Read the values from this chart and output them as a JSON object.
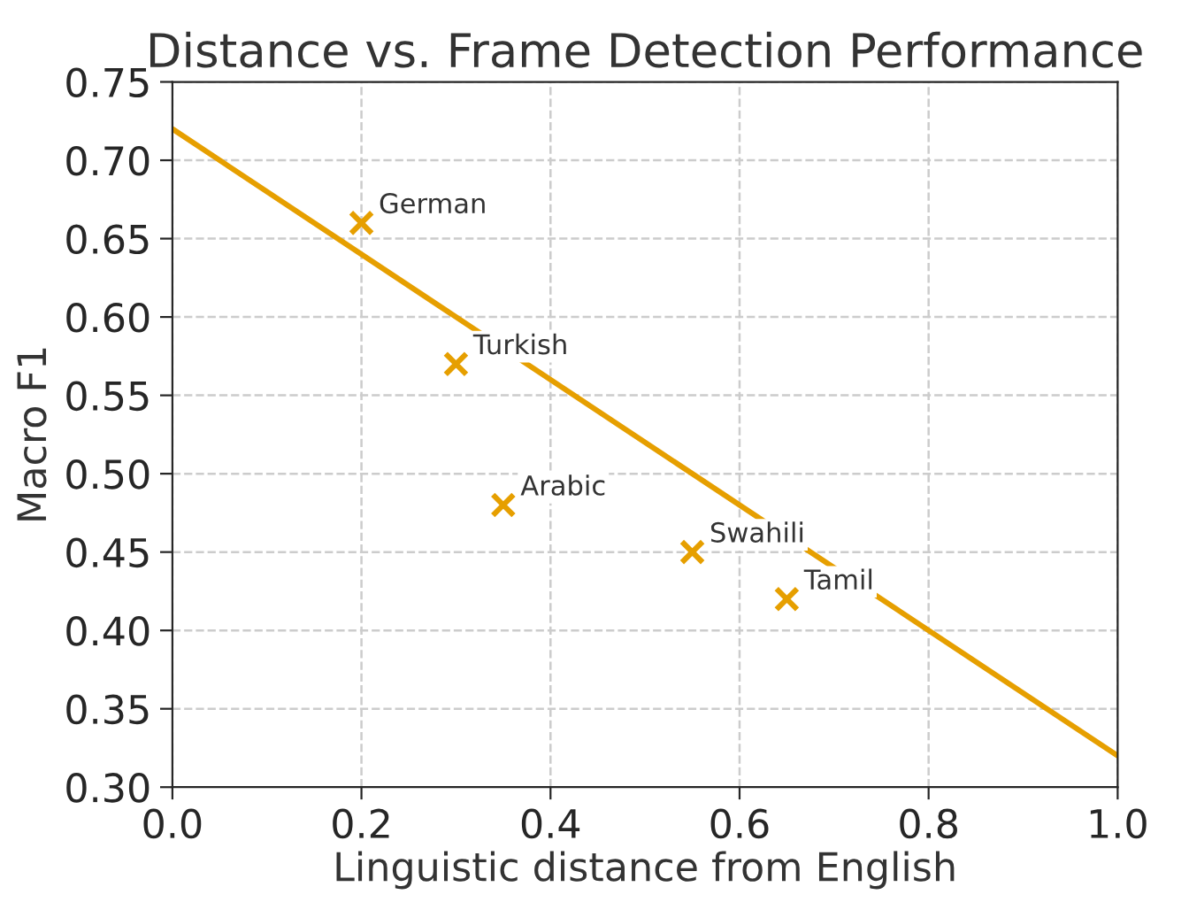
{
  "chart_data": {
    "type": "scatter",
    "title": "Distance vs. Frame Detection Performance",
    "xlabel": "Linguistic distance from English",
    "ylabel": "Macro F1",
    "series": [
      {
        "color": "#e69f00",
        "marker": "cross",
        "x": [
          0.2,
          0.3,
          0.35,
          0.55,
          0.65
        ],
        "values": [
          0.66,
          0.57,
          0.48,
          0.45,
          0.42
        ]
      },
      {
        "type": "line",
        "color": "#e69f00",
        "marker": "none",
        "x": [
          0.0,
          1.0
        ],
        "values": [
          0.72,
          0.32
        ]
      }
    ],
    "annotations": [
      {
        "text": "German",
        "x": 0.2,
        "y": 0.66
      },
      {
        "text": "Turkish",
        "x": 0.3,
        "y": 0.57
      },
      {
        "text": "Arabic",
        "x": 0.35,
        "y": 0.48
      },
      {
        "text": "Swahili",
        "x": 0.55,
        "y": 0.45
      },
      {
        "text": "Tamil",
        "x": 0.65,
        "y": 0.42
      }
    ],
    "xlim": [
      0.0,
      1.0
    ],
    "ylim": [
      0.3,
      0.75
    ],
    "xticks": [
      {
        "value": 0,
        "label": "0.0"
      },
      {
        "value": 0.2,
        "label": "0.2"
      },
      {
        "value": 0.4,
        "label": "0.4"
      },
      {
        "value": 0.6,
        "label": "0.6"
      },
      {
        "value": 0.8,
        "label": "0.8"
      },
      {
        "value": 1,
        "label": "1.0"
      }
    ],
    "yticks": [
      {
        "value": 0.3,
        "label": "0.30"
      },
      {
        "value": 0.35,
        "label": "0.35"
      },
      {
        "value": 0.4,
        "label": "0.40"
      },
      {
        "value": 0.45,
        "label": "0.45"
      },
      {
        "value": 0.5,
        "label": "0.50"
      },
      {
        "value": 0.55,
        "label": "0.55"
      },
      {
        "value": 0.6,
        "label": "0.60"
      },
      {
        "value": 0.65,
        "label": "0.65"
      },
      {
        "value": 0.7,
        "label": "0.70"
      },
      {
        "value": 0.75,
        "label": "0.75"
      }
    ],
    "grid": true,
    "legend": false
  }
}
